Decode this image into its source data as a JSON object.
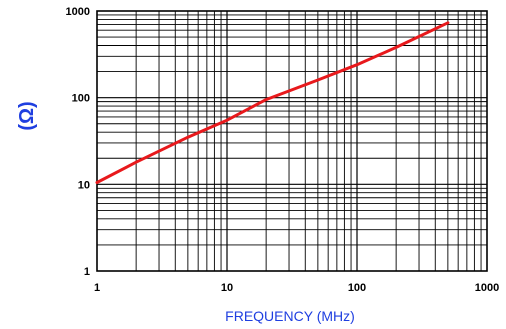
{
  "chart_data": {
    "type": "line",
    "title": "",
    "xlabel": "FREQUENCY (MHz)",
    "ylabel": "(Ω)",
    "xscale": "log",
    "yscale": "log",
    "xlim": [
      1,
      1000
    ],
    "ylim": [
      1,
      1000
    ],
    "xticks": [
      "1",
      "10",
      "100",
      "1000"
    ],
    "yticks": [
      "1",
      "10",
      "100",
      "1000"
    ],
    "grid": true,
    "legend": "none",
    "series": [
      {
        "x": [
          1,
          2,
          5,
          10,
          20,
          50,
          100,
          200,
          500
        ],
        "y": [
          10.5,
          18,
          35,
          55,
          95,
          160,
          240,
          380,
          730
        ]
      }
    ],
    "colors": {
      "line": "#e8191c",
      "axis_label": "#1f3fe0",
      "grid": "#000000"
    }
  }
}
